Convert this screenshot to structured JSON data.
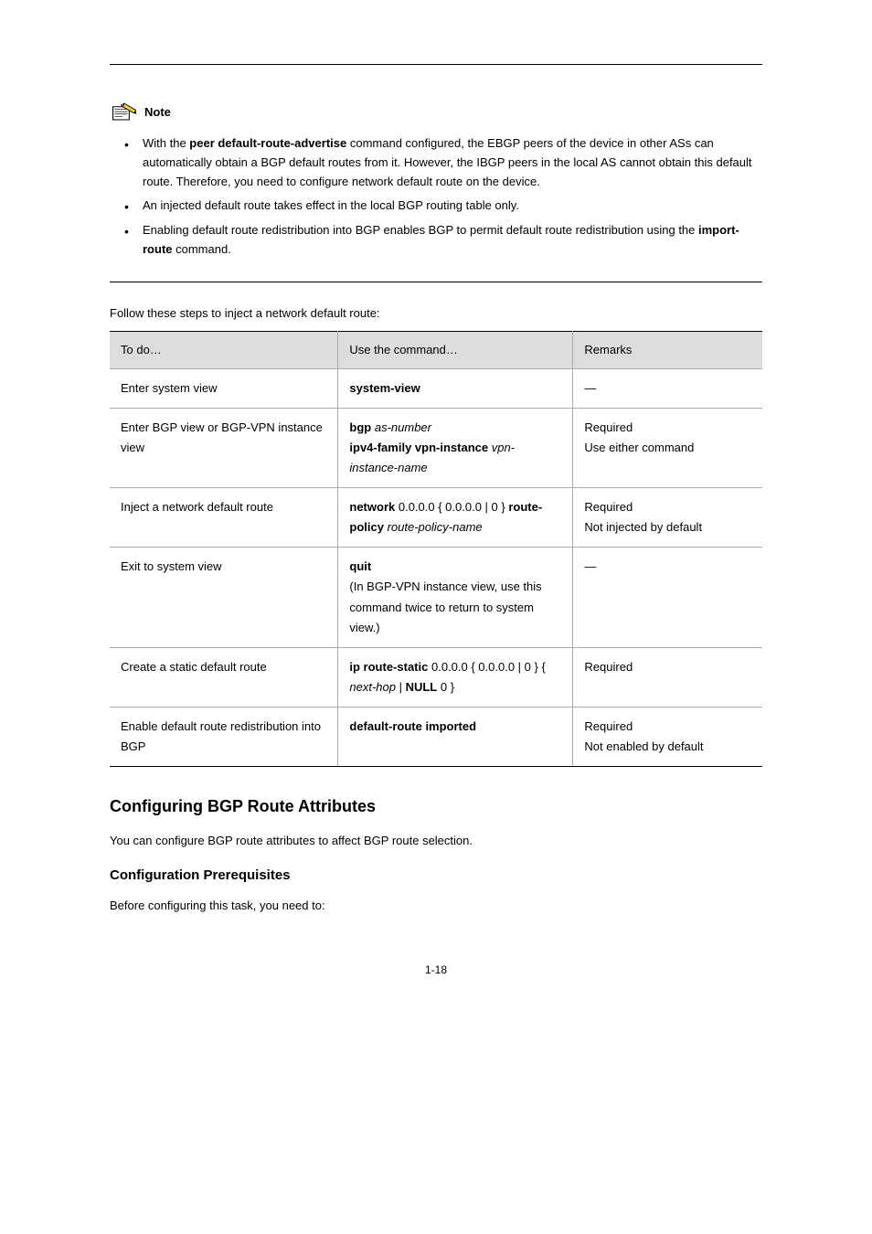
{
  "note": {
    "label": "Note",
    "bullets": [
      "With the <span class=\"bold-text\">peer default-route-advertise</span> command configured, the EBGP peers of the device in other ASs can automatically obtain a BGP default routes from it. However, the IBGP peers in the local AS cannot obtain this default route. Therefore, you need to configure network default route on the device.",
      "An injected default route takes effect in the local BGP routing table only.",
      "Enabling default route redistribution into BGP enables BGP to permit default route redistribution using the <span class=\"bold-text\">import-route</span> command."
    ]
  },
  "intro": "Follow these steps to inject a network default route:",
  "table": {
    "headers": [
      "To do…",
      "Use the command…",
      "Remarks"
    ],
    "rows": [
      [
        "Enter system view",
        "<span class=\"bold-text\">system-view</span>",
        "—"
      ],
      [
        "Enter BGP view or BGP-VPN instance view",
        "<span class=\"bold-text\">bgp</span> <i>as-number</i><br><span class=\"bold-text\">ipv4-family vpn-instance</span> <i>vpn-instance-name</i>",
        "Required<br>Use either command"
      ],
      [
        "Inject a network default route",
        "<span class=\"bold-text\">network</span> 0.0.0.0 { 0.0.0.0 | 0 } <span class=\"bold-text\">route-policy</span> <i>route-policy-name</i>",
        "Required<br>Not injected by default"
      ],
      [
        "Exit to system view",
        "<span class=\"bold-text\">quit</span><br>(In BGP-VPN instance view, use this command twice to return to system view.)",
        "—"
      ],
      [
        "Create a static default route",
        "<span class=\"bold-text\">ip route-static</span> 0.0.0.0 { 0.0.0.0 | 0 } { <i>next-hop</i> | <span class=\"bold-text\">NULL</span> 0 }",
        "Required"
      ],
      [
        "Enable default route redistribution into BGP",
        "<span class=\"bold-text\">default-route imported</span>",
        "Required<br>Not enabled by default"
      ]
    ]
  },
  "section": {
    "heading": "Configuring BGP Route Attributes",
    "subheading": "Configuration Prerequisites",
    "body": [
      "You can configure BGP route attributes to affect BGP route selection.",
      "Before configuring this task, you need to:"
    ]
  },
  "page_number": "1-18"
}
